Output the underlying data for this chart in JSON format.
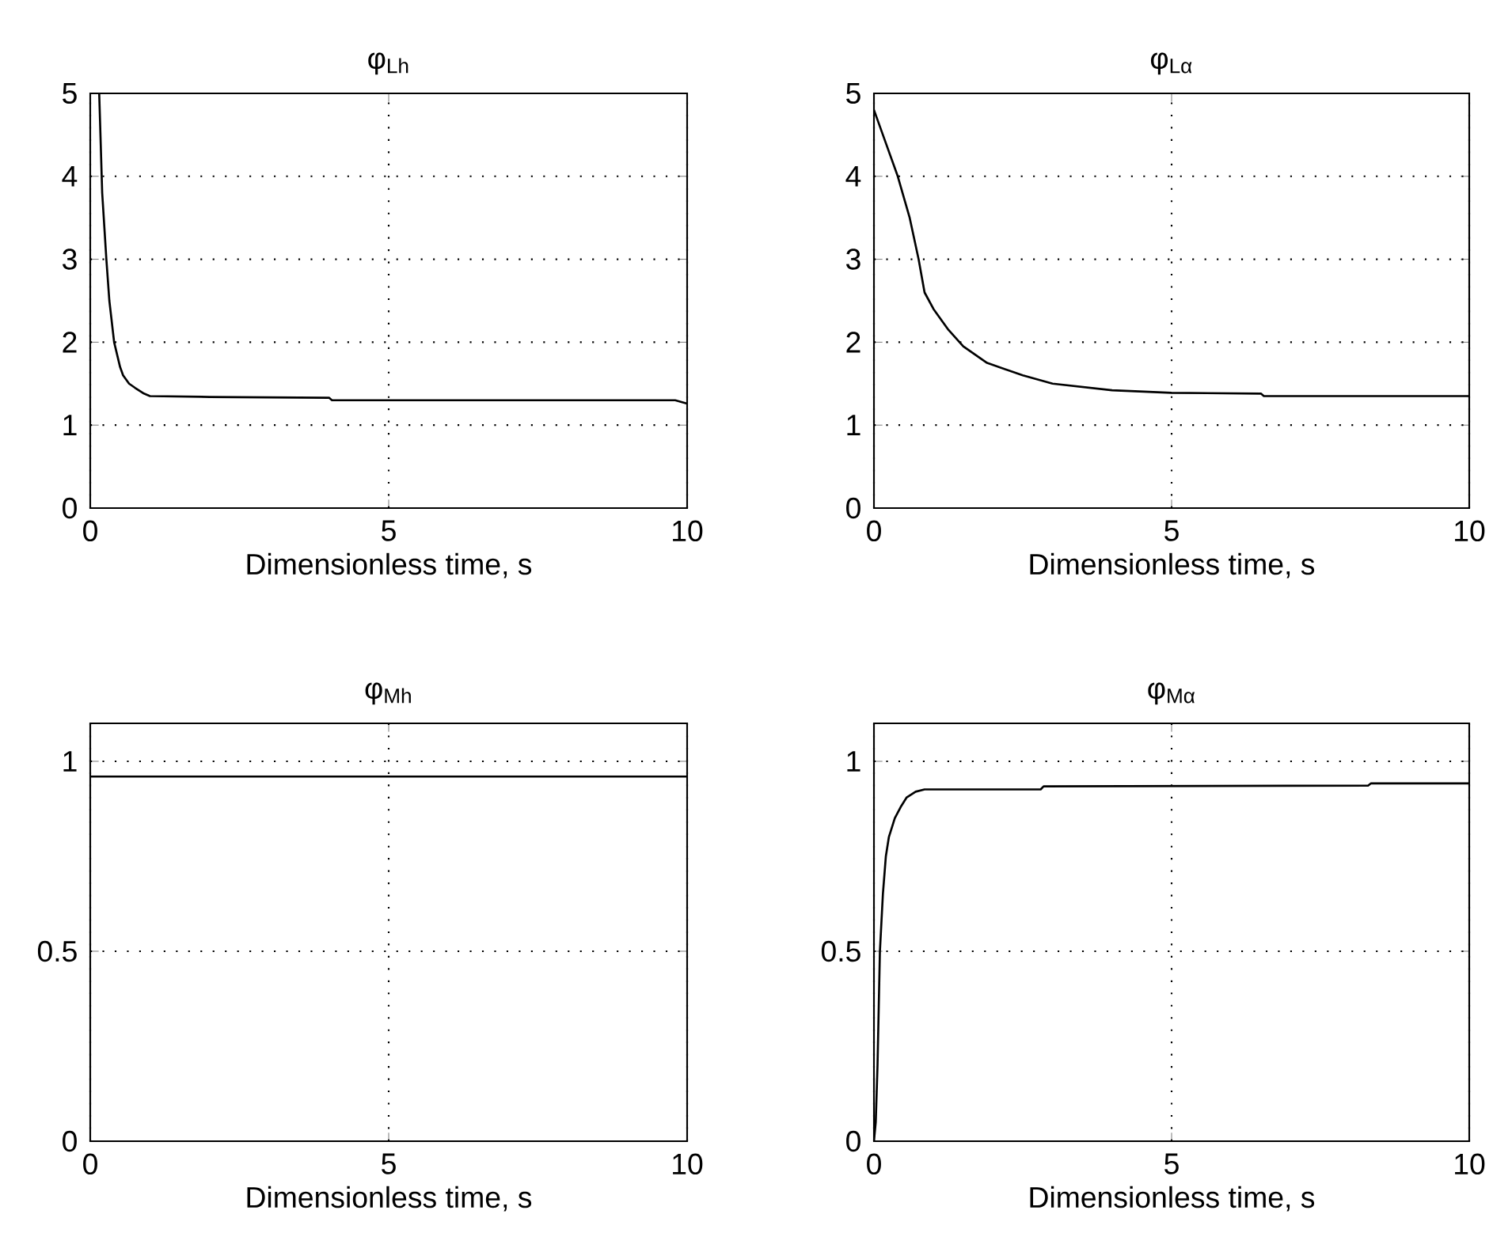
{
  "chart_data": [
    {
      "type": "line",
      "title": "φ$_{Lh}$",
      "xlabel": "Dimensionless time, s",
      "xlim": [
        0,
        10
      ],
      "xticks": [
        0,
        5,
        10
      ],
      "ylim": [
        0,
        5
      ],
      "yticks": [
        0,
        1,
        2,
        3,
        4,
        5
      ],
      "grid": true,
      "color": "#000000",
      "x": [
        0.15,
        0.2,
        0.27,
        0.32,
        0.4,
        0.5,
        0.55,
        0.65,
        0.75,
        0.9,
        1.0,
        2.0,
        4.0,
        4.05,
        6.0,
        9.8,
        10.0
      ],
      "values": [
        5,
        3.8,
        3,
        2.5,
        2,
        1.7,
        1.6,
        1.5,
        1.45,
        1.38,
        1.35,
        1.34,
        1.33,
        1.3,
        1.3,
        1.3,
        1.26
      ]
    },
    {
      "type": "line",
      "title": "φ$_{Lα}$",
      "xlabel": "Dimensionless time, s",
      "xlim": [
        0,
        10
      ],
      "xticks": [
        0,
        5,
        10
      ],
      "ylim": [
        0,
        5
      ],
      "yticks": [
        0,
        1,
        2,
        3,
        4,
        5
      ],
      "grid": true,
      "color": "#000000",
      "x": [
        0.0,
        0.05,
        0.2,
        0.4,
        0.6,
        0.75,
        0.85,
        1.0,
        1.25,
        1.5,
        1.9,
        2.5,
        3.0,
        4.0,
        5.0,
        6.5,
        6.55,
        10.0
      ],
      "values": [
        4.8,
        4.7,
        4.4,
        4,
        3.5,
        3,
        2.6,
        2.4,
        2.15,
        1.95,
        1.75,
        1.6,
        1.5,
        1.42,
        1.39,
        1.38,
        1.35,
        1.35
      ]
    },
    {
      "type": "line",
      "title": "φ$_{Mh}$",
      "xlabel": "Dimensionless time, s",
      "xlim": [
        0,
        10
      ],
      "xticks": [
        0,
        5,
        10
      ],
      "ylim": [
        0,
        1.1
      ],
      "yticks": [
        0,
        0.5,
        1
      ],
      "grid": true,
      "color": "#000000",
      "x": [
        0,
        10
      ],
      "values": [
        0.96,
        0.96
      ]
    },
    {
      "type": "line",
      "title": "φ$_{Mα}$",
      "xlabel": "Dimensionless time, s",
      "xlim": [
        0,
        10
      ],
      "xticks": [
        0,
        5,
        10
      ],
      "ylim": [
        0,
        1.1
      ],
      "yticks": [
        0,
        0.5,
        1
      ],
      "grid": true,
      "color": "#000000",
      "x": [
        0.0,
        0.03,
        0.06,
        0.1,
        0.15,
        0.2,
        0.25,
        0.35,
        0.45,
        0.55,
        0.7,
        0.85,
        2.8,
        2.85,
        8.3,
        8.35,
        10.0
      ],
      "values": [
        0,
        0.05,
        0.2,
        0.5,
        0.65,
        0.75,
        0.8,
        0.85,
        0.88,
        0.905,
        0.92,
        0.926,
        0.926,
        0.934,
        0.936,
        0.942,
        0.942
      ]
    }
  ]
}
